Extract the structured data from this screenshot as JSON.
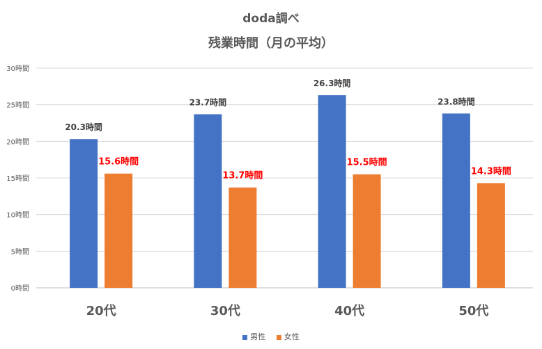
{
  "chart_data": {
    "type": "bar",
    "title": "doda調べ",
    "subtitle": "残業時間（月の平均）",
    "categories": [
      "20代",
      "30代",
      "40代",
      "50代"
    ],
    "series": [
      {
        "name": "男性",
        "values": [
          20.3,
          23.7,
          26.3,
          23.8
        ],
        "color": "#4472C4",
        "label_color": "#404040",
        "labels": [
          "20.3時間",
          "23.7時間",
          "26.3時間",
          "23.8時間"
        ]
      },
      {
        "name": "女性",
        "values": [
          15.6,
          13.7,
          15.5,
          14.3
        ],
        "color": "#ED7D31",
        "label_color": "#FF0000",
        "labels": [
          "15.6時間",
          "13.7時間",
          "15.5時間",
          "14.3時間"
        ]
      }
    ],
    "ylim": [
      0,
      30
    ],
    "yticks": [
      0,
      5,
      10,
      15,
      20,
      25,
      30
    ],
    "ytick_labels": [
      "0時間",
      "5時間",
      "10時間",
      "15時間",
      "20時間",
      "25時間",
      "30時間"
    ],
    "grid": true,
    "legend_position": "bottom"
  }
}
